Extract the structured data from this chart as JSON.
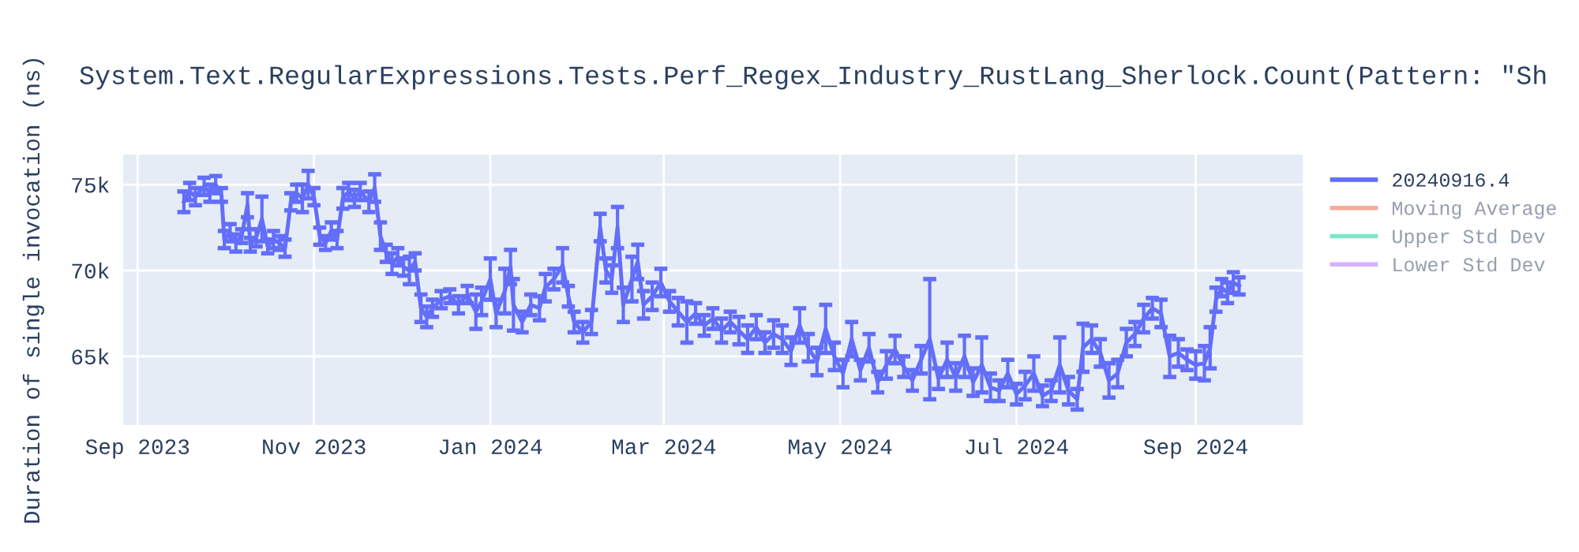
{
  "chart_data": {
    "type": "line",
    "title": "System.Text.RegularExpressions.Tests.Perf_Regex_Industry_RustLang_Sherlock.Count(Pattern: \"Sh",
    "ylabel": "Duration of single invocation (ns)",
    "xlim": [
      "2023-08-27",
      "2024-10-08"
    ],
    "xticks": [
      {
        "value": "2023-09-01",
        "label": "Sep 2023"
      },
      {
        "value": "2023-11-01",
        "label": "Nov 2023"
      },
      {
        "value": "2024-01-01",
        "label": "Jan 2024"
      },
      {
        "value": "2024-03-01",
        "label": "Mar 2024"
      },
      {
        "value": "2024-05-01",
        "label": "May 2024"
      },
      {
        "value": "2024-07-01",
        "label": "Jul 2024"
      },
      {
        "value": "2024-09-01",
        "label": "Sep 2024"
      }
    ],
    "ylim": [
      61000,
      76750
    ],
    "yticks": [
      {
        "value": 65000,
        "label": "65k"
      },
      {
        "value": 70000,
        "label": "70k"
      },
      {
        "value": 75000,
        "label": "75k"
      }
    ],
    "grid": true,
    "legend": "right",
    "marker": "none",
    "line_style": "solid",
    "series": [
      {
        "name": "20240916.4",
        "color": "#636efa",
        "x": [
          "2023-09-17",
          "2023-09-19",
          "2023-09-21",
          "2023-09-24",
          "2023-09-26",
          "2023-09-28",
          "2023-09-30",
          "2023-10-01",
          "2023-10-03",
          "2023-10-05",
          "2023-10-07",
          "2023-10-09",
          "2023-10-10",
          "2023-10-12",
          "2023-10-14",
          "2023-10-16",
          "2023-10-18",
          "2023-10-20",
          "2023-10-22",
          "2023-10-24",
          "2023-10-26",
          "2023-10-28",
          "2023-10-30",
          "2023-11-01",
          "2023-11-03",
          "2023-11-05",
          "2023-11-07",
          "2023-11-09",
          "2023-11-11",
          "2023-11-13",
          "2023-11-15",
          "2023-11-17",
          "2023-11-20",
          "2023-11-22",
          "2023-11-24",
          "2023-11-26",
          "2023-11-28",
          "2023-11-30",
          "2023-12-02",
          "2023-12-04",
          "2023-12-06",
          "2023-12-08",
          "2023-12-10",
          "2023-12-12",
          "2023-12-15",
          "2023-12-18",
          "2023-12-21",
          "2023-12-24",
          "2023-12-27",
          "2023-12-29",
          "2024-01-01",
          "2024-01-03",
          "2024-01-06",
          "2024-01-08",
          "2024-01-09",
          "2024-01-12",
          "2024-01-15",
          "2024-01-18",
          "2024-01-20",
          "2024-01-23",
          "2024-01-26",
          "2024-01-28",
          "2024-01-30",
          "2024-02-02",
          "2024-02-05",
          "2024-02-08",
          "2024-02-10",
          "2024-02-12",
          "2024-02-14",
          "2024-02-16",
          "2024-02-19",
          "2024-02-21",
          "2024-02-23",
          "2024-02-26",
          "2024-02-29",
          "2024-03-03",
          "2024-03-06",
          "2024-03-09",
          "2024-03-12",
          "2024-03-15",
          "2024-03-18",
          "2024-03-21",
          "2024-03-24",
          "2024-03-27",
          "2024-03-30",
          "2024-04-02",
          "2024-04-05",
          "2024-04-08",
          "2024-04-11",
          "2024-04-14",
          "2024-04-17",
          "2024-04-20",
          "2024-04-23",
          "2024-04-26",
          "2024-04-29",
          "2024-05-02",
          "2024-05-05",
          "2024-05-08",
          "2024-05-11",
          "2024-05-14",
          "2024-05-17",
          "2024-05-20",
          "2024-05-23",
          "2024-05-26",
          "2024-05-29",
          "2024-06-01",
          "2024-06-04",
          "2024-06-07",
          "2024-06-10",
          "2024-06-13",
          "2024-06-16",
          "2024-06-19",
          "2024-06-22",
          "2024-06-25",
          "2024-06-28",
          "2024-07-01",
          "2024-07-04",
          "2024-07-07",
          "2024-07-10",
          "2024-07-13",
          "2024-07-16",
          "2024-07-19",
          "2024-07-22",
          "2024-07-24",
          "2024-07-27",
          "2024-07-30",
          "2024-08-02",
          "2024-08-05",
          "2024-08-08",
          "2024-08-11",
          "2024-08-14",
          "2024-08-17",
          "2024-08-20",
          "2024-08-23",
          "2024-08-26",
          "2024-08-29",
          "2024-09-01",
          "2024-09-04",
          "2024-09-06",
          "2024-09-08",
          "2024-09-10",
          "2024-09-12",
          "2024-09-14",
          "2024-09-16"
        ],
        "values": [
          74000,
          74600,
          74300,
          74900,
          74500,
          75000,
          74400,
          71800,
          72200,
          71600,
          72000,
          73800,
          71500,
          71900,
          73000,
          71400,
          71800,
          71600,
          71300,
          74000,
          74500,
          74200,
          75000,
          74300,
          72000,
          71600,
          72300,
          71800,
          74200,
          74600,
          74200,
          74600,
          74000,
          74800,
          72000,
          71000,
          70400,
          70800,
          70200,
          70000,
          70500,
          67800,
          67300,
          67800,
          68300,
          68500,
          68000,
          68600,
          67600,
          68200,
          69500,
          67500,
          68800,
          70200,
          68000,
          67000,
          68000,
          67800,
          69000,
          69500,
          70300,
          68500,
          67000,
          66400,
          67000,
          72500,
          70000,
          69500,
          72500,
          68000,
          69500,
          70500,
          68000,
          68500,
          69300,
          68200,
          67600,
          67000,
          67500,
          66800,
          67200,
          66500,
          67000,
          66500,
          66000,
          66700,
          65800,
          66300,
          66000,
          65300,
          66800,
          65500,
          64700,
          66600,
          65000,
          64000,
          66000,
          64200,
          65500,
          63500,
          64500,
          65400,
          64400,
          63600,
          64800,
          66000,
          63700,
          64800,
          63800,
          65000,
          63500,
          64500,
          63200,
          63000,
          64000,
          62800,
          63300,
          64000,
          62700,
          63000,
          64500,
          63000,
          62500,
          65500,
          66000,
          65200,
          63600,
          64000,
          65800,
          66300,
          67200,
          67800,
          67500,
          65000,
          65200,
          64800,
          64500,
          64600,
          65500,
          68300,
          69000,
          68700,
          69300,
          69100
        ],
        "errors": [
          600,
          500,
          500,
          500,
          500,
          500,
          400,
          500,
          500,
          500,
          400,
          700,
          400,
          500,
          1300,
          400,
          500,
          400,
          500,
          500,
          500,
          800,
          800,
          500,
          500,
          400,
          500,
          500,
          600,
          500,
          500,
          500,
          600,
          800,
          800,
          500,
          600,
          500,
          500,
          800,
          500,
          800,
          600,
          500,
          500,
          400,
          500,
          500,
          1000,
          800,
          1200,
          800,
          1300,
          1000,
          1500,
          600,
          600,
          700,
          800,
          600,
          1000,
          600,
          600,
          600,
          700,
          800,
          700,
          800,
          1200,
          1000,
          1300,
          1000,
          800,
          800,
          800,
          600,
          800,
          1200,
          600,
          600,
          600,
          700,
          600,
          800,
          800,
          700,
          600,
          800,
          800,
          800,
          1000,
          800,
          800,
          1400,
          800,
          800,
          1000,
          600,
          800,
          600,
          800,
          800,
          600,
          600,
          800,
          3500,
          600,
          1000,
          800,
          1200,
          800,
          1600,
          800,
          600,
          800,
          600,
          800,
          1000,
          600,
          600,
          1600,
          800,
          600,
          1400,
          800,
          800,
          1000,
          800,
          800,
          700,
          800,
          600,
          800,
          1200,
          800,
          600,
          800,
          1000,
          1200,
          700,
          500,
          600,
          600,
          500
        ]
      },
      {
        "name": "Moving Average",
        "color": "#ef553b"
      },
      {
        "name": "Upper Std Dev",
        "color": "#00cc96"
      },
      {
        "name": "Lower Std Dev",
        "color": "#ab63fa"
      }
    ]
  }
}
